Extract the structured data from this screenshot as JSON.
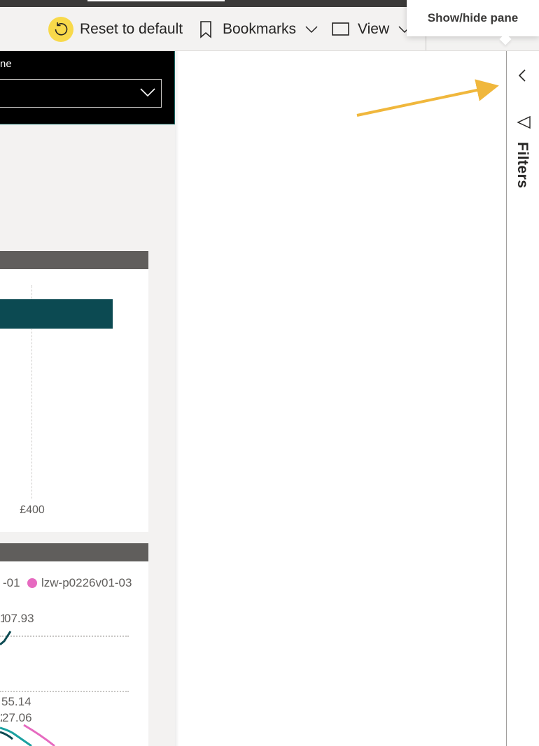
{
  "toolbar": {
    "reset_label": "Reset to default",
    "bookmarks_label": "Bookmarks",
    "view_label": "View"
  },
  "tooltip": {
    "text": "Show/hide pane"
  },
  "slicer": {
    "title_fragment": "ne",
    "selected_value": ""
  },
  "bar_chart": {
    "axis_tick": "£400",
    "bar_color": "#0c4a52"
  },
  "line_chart": {
    "legend": [
      {
        "label": "-01",
        "color": "#0c4a52"
      },
      {
        "label": "lzw-p0226v01-03",
        "color": "#e66ac0"
      }
    ],
    "data_labels": [
      "07.93",
      "55.14",
      "27.06"
    ],
    "series_colors": [
      "#0c4a52",
      "#1aa0a0",
      "#e66ac0"
    ]
  },
  "filter_pane": {
    "label": "Filters",
    "toggle_icon": "chevron-left-icon",
    "filter_icon": "filter-icon"
  },
  "annotation": {
    "arrow_color": "#f0b73c"
  }
}
